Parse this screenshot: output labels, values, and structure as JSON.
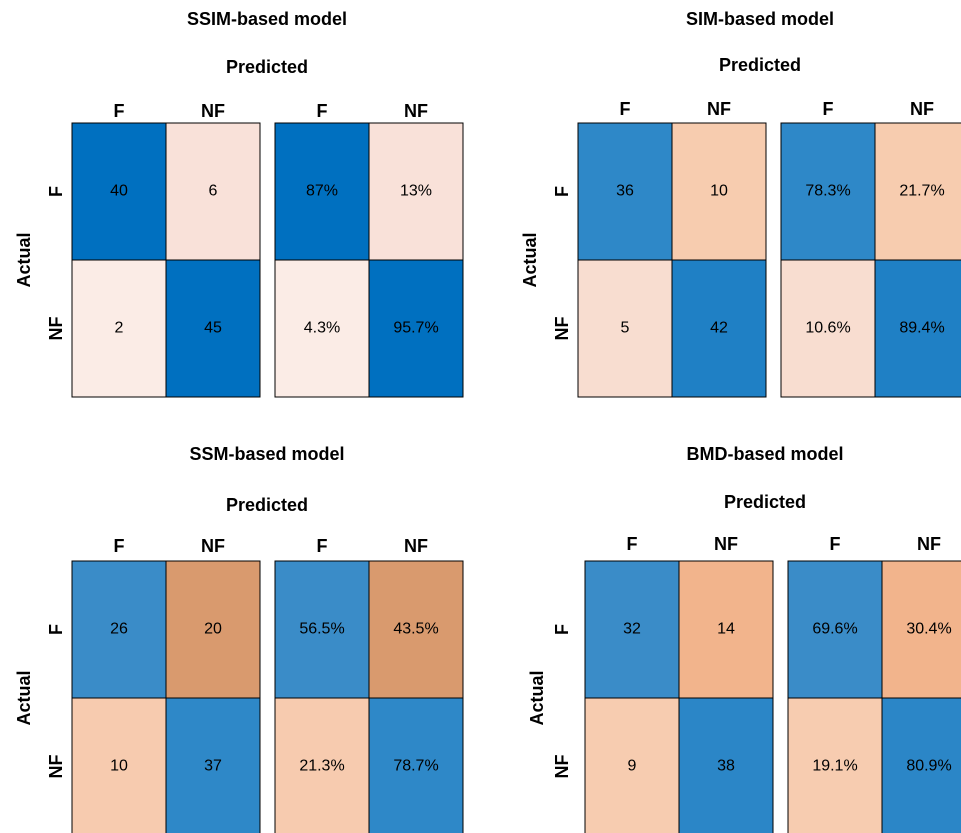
{
  "chart_data": [
    {
      "type": "confusion",
      "title": "SSIM-based model",
      "x_label": "Predicted",
      "y_label": "Actual",
      "columns": [
        "F",
        "NF"
      ],
      "rows": [
        "F",
        "NF"
      ],
      "counts": [
        [
          40,
          6
        ],
        [
          2,
          45
        ]
      ],
      "values": [
        [
          87,
          13
        ],
        [
          4.3,
          95.7
        ]
      ],
      "value_labels": [
        [
          "87%",
          "13%"
        ],
        [
          "4.3%",
          "95.7%"
        ]
      ],
      "colors": [
        [
          "#0070c0",
          "#f9e1d9"
        ],
        [
          "#fbece6",
          "#0070c0"
        ]
      ]
    },
    {
      "type": "confusion",
      "title": "SIM-based model",
      "x_label": "Predicted",
      "y_label": "Actual",
      "columns": [
        "F",
        "NF"
      ],
      "rows": [
        "F",
        "NF"
      ],
      "counts": [
        [
          36,
          10
        ],
        [
          5,
          42
        ]
      ],
      "values": [
        [
          78.3,
          21.7
        ],
        [
          10.6,
          89.4
        ]
      ],
      "value_labels": [
        [
          "78.3%",
          "21.7%"
        ],
        [
          "10.6%",
          "89.4%"
        ]
      ],
      "colors": [
        [
          "#2e88c8",
          "#f7ccaf"
        ],
        [
          "#f8ddd0",
          "#1f80c5"
        ]
      ]
    },
    {
      "type": "confusion",
      "title": "SSM-based model",
      "x_label": "Predicted",
      "y_label": "Actual",
      "columns": [
        "F",
        "NF"
      ],
      "rows": [
        "F",
        "NF"
      ],
      "counts": [
        [
          26,
          20
        ],
        [
          10,
          37
        ]
      ],
      "values": [
        [
          56.5,
          43.5
        ],
        [
          21.3,
          78.7
        ]
      ],
      "value_labels": [
        [
          "56.5%",
          "43.5%"
        ],
        [
          "21.3%",
          "78.7%"
        ]
      ],
      "colors": [
        [
          "#3a8cc8",
          "#d99a6e"
        ],
        [
          "#f7cbaf",
          "#2e88c8"
        ]
      ]
    },
    {
      "type": "confusion",
      "title": "BMD-based model",
      "x_label": "Predicted",
      "y_label": "Actual",
      "columns": [
        "F",
        "NF"
      ],
      "rows": [
        "F",
        "NF"
      ],
      "counts": [
        [
          32,
          14
        ],
        [
          9,
          38
        ]
      ],
      "values": [
        [
          69.6,
          30.4
        ],
        [
          19.1,
          80.9
        ]
      ],
      "value_labels": [
        [
          "69.6%",
          "30.4%"
        ],
        [
          "19.1%",
          "80.9%"
        ]
      ],
      "colors": [
        [
          "#3a8cc8",
          "#f2b48c"
        ],
        [
          "#f7ccb0",
          "#2b86c7"
        ]
      ]
    }
  ]
}
